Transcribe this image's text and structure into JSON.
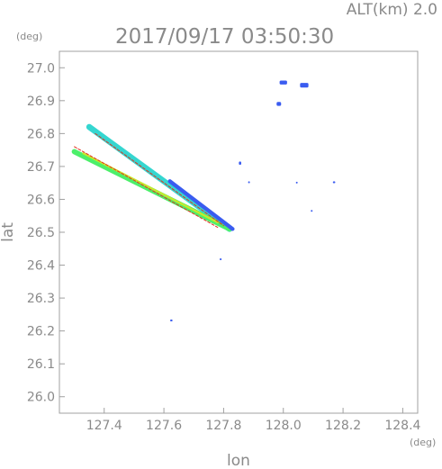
{
  "chart_data": {
    "type": "scatter",
    "title": "2017/09/17 03:50:30",
    "subtitle": "ALT(km)  2.0",
    "xlabel": "lon",
    "ylabel": "lat",
    "x_unit": "(deg)",
    "y_unit": "(deg)",
    "xlim": [
      127.25,
      128.45
    ],
    "ylim": [
      25.95,
      27.05
    ],
    "x_ticks": [
      "127.4",
      "127.6",
      "127.8",
      "128.0",
      "128.2",
      "128.4"
    ],
    "y_ticks": [
      "26.0",
      "26.1",
      "26.2",
      "26.3",
      "26.4",
      "26.5",
      "26.6",
      "26.7",
      "26.8",
      "26.9",
      "27.0"
    ],
    "grid": false,
    "legend": "none",
    "colors": {
      "axis": "#a0a0a0",
      "text": "#8a8a8a",
      "blue": "#3a5cf0",
      "cyan": "#35d6d0",
      "green": "#4cef6a",
      "yellow": "#c8e82c",
      "red": "#e0321e"
    },
    "series": [
      {
        "values": [
          {
            "type": "band",
            "from": [
              127.35,
              26.82
            ],
            "to": [
              127.82,
              26.51
            ],
            "width": 0.018,
            "color": "cyan"
          },
          {
            "type": "band",
            "from": [
              127.3,
              26.745
            ],
            "to": [
              127.82,
              26.51
            ],
            "width": 0.016,
            "color": "green"
          },
          {
            "type": "band",
            "from": [
              127.33,
              26.74
            ],
            "to": [
              127.78,
              26.53
            ],
            "width": 0.006,
            "color": "yellow"
          },
          {
            "type": "line",
            "from": [
              127.3,
              26.76
            ],
            "to": [
              127.78,
              26.515
            ],
            "color": "red"
          },
          {
            "type": "line",
            "from": [
              127.37,
              26.8
            ],
            "to": [
              127.8,
              26.52
            ],
            "color": "red"
          },
          {
            "type": "band",
            "from": [
              127.62,
              26.655
            ],
            "to": [
              127.83,
              26.51
            ],
            "width": 0.012,
            "color": "blue"
          }
        ]
      },
      {
        "values": [
          {
            "x": 128.0,
            "y": 26.955,
            "w": 0.025,
            "h": 0.012,
            "color": "blue"
          },
          {
            "x": 128.07,
            "y": 26.947,
            "w": 0.028,
            "h": 0.014,
            "color": "blue"
          },
          {
            "x": 127.985,
            "y": 26.89,
            "w": 0.015,
            "h": 0.012,
            "color": "blue"
          },
          {
            "x": 127.855,
            "y": 26.71,
            "w": 0.008,
            "h": 0.01,
            "color": "blue"
          },
          {
            "x": 127.885,
            "y": 26.652,
            "w": 0.006,
            "h": 0.006,
            "color": "blue"
          },
          {
            "x": 128.17,
            "y": 26.652,
            "w": 0.008,
            "h": 0.006,
            "color": "blue"
          },
          {
            "x": 128.045,
            "y": 26.651,
            "w": 0.004,
            "h": 0.004,
            "color": "blue"
          },
          {
            "x": 128.095,
            "y": 26.565,
            "w": 0.004,
            "h": 0.004,
            "color": "blue"
          },
          {
            "x": 127.79,
            "y": 26.418,
            "w": 0.007,
            "h": 0.005,
            "color": "blue"
          },
          {
            "x": 127.625,
            "y": 26.232,
            "w": 0.008,
            "h": 0.006,
            "color": "blue"
          }
        ]
      }
    ]
  }
}
